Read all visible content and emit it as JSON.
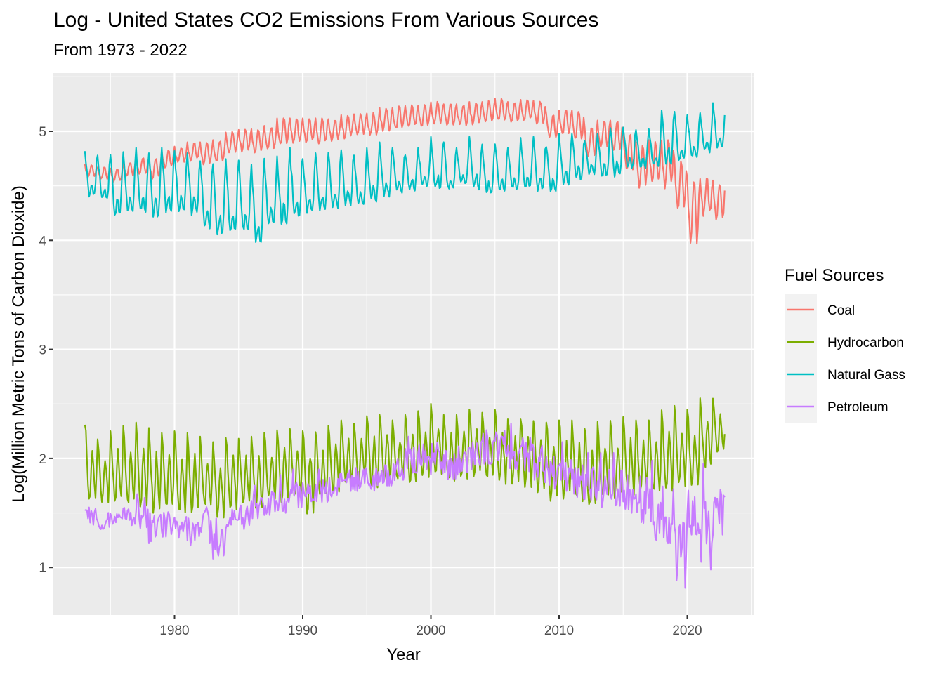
{
  "chart_data": {
    "type": "line",
    "title": "Log - United States CO2 Emissions From Various Sources",
    "subtitle": "From 1973 - 2022",
    "xlabel": "Year",
    "ylabel": "Log(Million Metric Tons of Carbon Dioxide)",
    "xlim": [
      1972.3,
      2025.5
    ],
    "ylim": [
      0.58,
      5.55
    ],
    "x_ticks": [
      1980,
      1990,
      2000,
      2010,
      2020
    ],
    "x_tick_labels": [
      "1980",
      "1990",
      "2000",
      "2010",
      "2020"
    ],
    "y_ticks": [
      1,
      2,
      3,
      4,
      5
    ],
    "y_tick_labels": [
      "1",
      "2",
      "3",
      "4",
      "5"
    ],
    "grid": true,
    "legend": {
      "title": "Fuel Sources",
      "position": "right"
    },
    "frequency": "monthly",
    "years": [
      1973,
      1974,
      1975,
      1976,
      1977,
      1978,
      1979,
      1980,
      1981,
      1982,
      1983,
      1984,
      1985,
      1986,
      1987,
      1988,
      1989,
      1990,
      1991,
      1992,
      1993,
      1994,
      1995,
      1996,
      1997,
      1998,
      1999,
      2000,
      2001,
      2002,
      2003,
      2004,
      2005,
      2006,
      2007,
      2008,
      2009,
      2010,
      2011,
      2012,
      2013,
      2014,
      2015,
      2016,
      2017,
      2018,
      2019,
      2020,
      2021,
      2022
    ],
    "series_note": "Annual peak (seasonal high) and trough (seasonal low) values of the log monthly emissions, estimated from the plot",
    "series": [
      {
        "name": "Coal",
        "color": "#F8766D",
        "peak": [
          4.7,
          4.67,
          4.66,
          4.72,
          4.76,
          4.76,
          4.83,
          4.86,
          4.9,
          4.9,
          4.92,
          5.0,
          5.02,
          5.02,
          5.05,
          5.12,
          5.12,
          5.12,
          5.12,
          5.12,
          5.15,
          5.16,
          5.17,
          5.22,
          5.23,
          5.24,
          5.25,
          5.28,
          5.26,
          5.25,
          5.27,
          5.28,
          5.3,
          5.27,
          5.29,
          5.28,
          5.16,
          5.2,
          5.2,
          5.05,
          5.1,
          5.1,
          5.0,
          4.9,
          4.92,
          4.92,
          4.75,
          4.6,
          4.58,
          4.55
        ],
        "trough": [
          4.57,
          4.55,
          4.53,
          4.58,
          4.6,
          4.55,
          4.65,
          4.7,
          4.72,
          4.68,
          4.7,
          4.78,
          4.8,
          4.78,
          4.82,
          4.85,
          4.87,
          4.88,
          4.87,
          4.9,
          4.92,
          4.95,
          4.94,
          4.98,
          5.0,
          5.02,
          5.02,
          5.05,
          5.04,
          5.03,
          5.05,
          5.06,
          5.08,
          5.06,
          5.08,
          5.05,
          4.92,
          4.95,
          4.9,
          4.75,
          4.82,
          4.8,
          4.6,
          4.45,
          4.48,
          4.45,
          4.25,
          3.9,
          4.2,
          4.15
        ]
      },
      {
        "name": "Hydrocarbon",
        "color": "#7CAE00",
        "peak": [
          2.35,
          2.18,
          2.25,
          2.3,
          2.33,
          2.28,
          2.25,
          2.25,
          2.26,
          2.2,
          2.15,
          2.22,
          2.2,
          2.2,
          2.25,
          2.3,
          2.28,
          2.3,
          2.25,
          2.3,
          2.35,
          2.35,
          2.4,
          2.4,
          2.35,
          2.4,
          2.45,
          2.52,
          2.4,
          2.4,
          2.45,
          2.42,
          2.45,
          2.4,
          2.4,
          2.35,
          2.35,
          2.38,
          2.35,
          2.3,
          2.35,
          2.35,
          2.38,
          2.35,
          2.35,
          2.45,
          2.5,
          2.45,
          2.58,
          2.55
        ],
        "trough": [
          1.5,
          1.55,
          1.58,
          1.52,
          1.48,
          1.45,
          1.5,
          1.45,
          1.45,
          1.48,
          1.42,
          1.5,
          1.5,
          1.48,
          1.55,
          1.55,
          1.58,
          1.45,
          1.6,
          1.65,
          1.7,
          1.72,
          1.7,
          1.75,
          1.75,
          1.72,
          1.78,
          1.82,
          1.75,
          1.78,
          1.8,
          1.75,
          1.72,
          1.72,
          1.7,
          1.65,
          1.55,
          1.58,
          1.55,
          1.5,
          1.58,
          1.58,
          1.62,
          1.62,
          1.65,
          1.65,
          1.68,
          1.7,
          1.85,
          2.0
        ]
      },
      {
        "name": "Natural Gass",
        "color": "#00BFC4",
        "peak": [
          4.82,
          4.78,
          4.8,
          4.82,
          4.85,
          4.8,
          4.85,
          4.82,
          4.8,
          4.75,
          4.7,
          4.78,
          4.75,
          4.72,
          4.75,
          4.8,
          4.85,
          4.75,
          4.8,
          4.82,
          4.85,
          4.78,
          4.85,
          4.9,
          4.85,
          4.8,
          4.85,
          4.95,
          4.9,
          4.85,
          4.95,
          4.88,
          4.9,
          4.85,
          4.95,
          4.95,
          4.88,
          5.0,
          4.98,
          4.92,
          5.0,
          5.05,
          5.05,
          5.02,
          5.02,
          5.2,
          5.2,
          5.15,
          5.18,
          5.26
        ],
        "trough": [
          4.4,
          4.35,
          4.22,
          4.25,
          4.25,
          4.2,
          4.25,
          4.25,
          4.22,
          4.1,
          4.05,
          4.05,
          4.05,
          3.95,
          4.1,
          4.15,
          4.2,
          4.25,
          4.27,
          4.28,
          4.3,
          4.3,
          4.35,
          4.38,
          4.42,
          4.45,
          4.48,
          4.45,
          4.45,
          4.5,
          4.45,
          4.4,
          4.42,
          4.45,
          4.45,
          4.45,
          4.45,
          4.5,
          4.55,
          4.6,
          4.58,
          4.58,
          4.65,
          4.65,
          4.68,
          4.7,
          4.72,
          4.75,
          4.8,
          4.82
        ]
      },
      {
        "name": "Petroleum",
        "color": "#C77CFF",
        "peak": [
          1.62,
          1.58,
          1.55,
          1.62,
          1.8,
          1.62,
          1.6,
          1.58,
          1.55,
          1.68,
          1.45,
          1.62,
          1.68,
          1.75,
          1.78,
          1.85,
          1.9,
          1.88,
          1.9,
          1.95,
          1.98,
          2.0,
          2.0,
          2.05,
          2.1,
          2.2,
          2.25,
          2.28,
          2.2,
          2.22,
          2.25,
          2.45,
          2.38,
          2.32,
          2.38,
          2.28,
          2.15,
          2.15,
          2.1,
          2.05,
          2.05,
          2.05,
          2.05,
          2.0,
          1.98,
          1.95,
          1.9,
          1.95,
          1.95,
          1.9
        ],
        "trough": [
          1.38,
          1.35,
          1.35,
          1.38,
          1.35,
          1.22,
          1.28,
          1.25,
          1.2,
          1.22,
          1.08,
          1.35,
          1.35,
          1.45,
          1.48,
          1.5,
          1.55,
          1.55,
          1.6,
          1.62,
          1.7,
          1.7,
          1.7,
          1.75,
          1.8,
          1.85,
          1.9,
          1.85,
          1.8,
          1.85,
          1.9,
          1.95,
          1.95,
          1.9,
          1.88,
          1.78,
          1.7,
          1.7,
          1.62,
          1.6,
          1.55,
          1.52,
          1.5,
          1.4,
          1.22,
          1.22,
          0.78,
          1.3,
          0.96,
          1.3
        ]
      }
    ]
  }
}
